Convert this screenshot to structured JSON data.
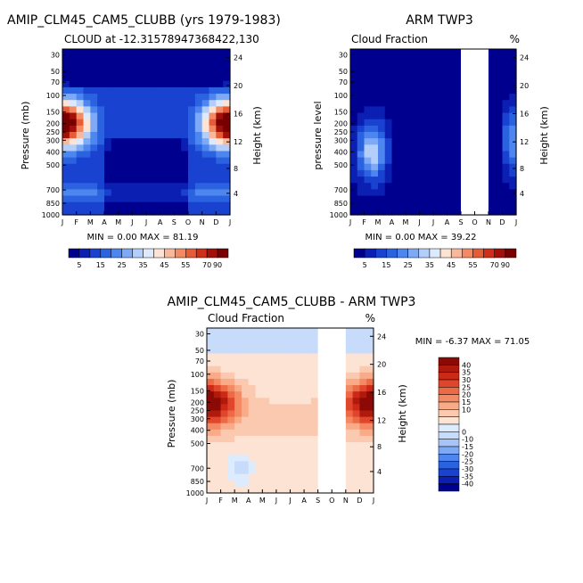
{
  "colors": {
    "cloud_scale": [
      "#00008e",
      "#0b1fb2",
      "#1842cf",
      "#2b62e0",
      "#4d86ee",
      "#7ea9f5",
      "#b4cefa",
      "#ddeafd",
      "#fde3d3",
      "#f9b89a",
      "#f48a64",
      "#e65b38",
      "#cf2e18",
      "#a3100a",
      "#780000"
    ],
    "diff_scale": [
      "#00008e",
      "#0b1fb2",
      "#1842cf",
      "#2b62e0",
      "#4d86ee",
      "#7ea9f5",
      "#a6c4f8",
      "#c7dbfb",
      "#dcebfd",
      "#fde3d3",
      "#fbc9b0",
      "#f9ab88",
      "#f48a64",
      "#ec6a45",
      "#e0462b",
      "#cc2a17",
      "#b01a0c",
      "#8c0a05"
    ]
  },
  "charts": [
    {
      "name": "model",
      "title": "AMIP_CLM45_CAM5_CLUBB (yrs 1979-1983)",
      "subtitle_left": "CLOUD at -12.31578947368422,130",
      "subtitle_right": "",
      "ylabel": "Pressure (mb)",
      "ylabel_right": "Height (km)",
      "minmax": "MIN =    0.00 MAX =   81.19",
      "axis_note": ""
    },
    {
      "name": "obs",
      "title": "ARM TWP3",
      "subtitle_left": "Cloud Fraction",
      "subtitle_right": "%",
      "ylabel": "pressure level",
      "ylabel_right": "Height (km)",
      "minmax": "MIN =    0.00 MAX =   39.22",
      "axis_note": ""
    },
    {
      "name": "diff",
      "title": "AMIP_CLM45_CAM5_CLUBB - ARM TWP3",
      "subtitle_left": "Cloud Fraction",
      "subtitle_right": "%",
      "ylabel": "Pressure (mb)",
      "ylabel_right": "Height (km)",
      "minmax": "MIN =   -6.37 MAX =   71.05",
      "axis_note": ""
    }
  ],
  "chart_data": [
    {
      "type": "heatmap",
      "title": "AMIP_CLM45_CAM5_CLUBB (yrs 1979-1983)",
      "x_ticks": [
        "J",
        "F",
        "M",
        "A",
        "M",
        "J",
        "J",
        "A",
        "S",
        "O",
        "N",
        "D",
        "J"
      ],
      "y_ticks_pressure": [
        "30",
        "50",
        "70",
        "100",
        "150",
        "200",
        "250",
        "300",
        "400",
        "500",
        "700",
        "850",
        "1000"
      ],
      "y_ticks_height": [
        "24",
        "20",
        "16",
        "12",
        "8",
        "4"
      ],
      "colorbar_labels": [
        "5",
        "15",
        "25",
        "35",
        "45",
        "55",
        "70",
        "90"
      ],
      "min": 0.0,
      "max": 81.19,
      "missing_months": []
    },
    {
      "type": "heatmap",
      "title": "ARM TWP3",
      "x_ticks": [
        "J",
        "F",
        "M",
        "A",
        "M",
        "J",
        "J",
        "A",
        "S",
        "O",
        "N",
        "D",
        "J"
      ],
      "y_ticks_pressure": [
        "30",
        "50",
        "70",
        "100",
        "150",
        "200",
        "250",
        "300",
        "400",
        "500",
        "700",
        "850",
        "1000"
      ],
      "y_ticks_height": [
        "24",
        "20",
        "16",
        "12",
        "8",
        "4"
      ],
      "colorbar_labels": [
        "5",
        "15",
        "25",
        "35",
        "45",
        "55",
        "70",
        "90"
      ],
      "min": 0.0,
      "max": 39.22,
      "missing_months": [
        "S",
        "O"
      ]
    },
    {
      "type": "heatmap",
      "title": "AMIP_CLM45_CAM5_CLUBB - ARM TWP3",
      "x_ticks": [
        "J",
        "F",
        "M",
        "A",
        "M",
        "J",
        "J",
        "A",
        "S",
        "O",
        "N",
        "D",
        "J"
      ],
      "y_ticks_pressure": [
        "30",
        "50",
        "70",
        "100",
        "150",
        "200",
        "250",
        "300",
        "400",
        "500",
        "700",
        "850",
        "1000"
      ],
      "y_ticks_height": [
        "24",
        "20",
        "16",
        "12",
        "8",
        "4"
      ],
      "colorbar_labels": [
        "40",
        "35",
        "30",
        "25",
        "20",
        "15",
        "10",
        "0",
        "-10",
        "-15",
        "-20",
        "-25",
        "-30",
        "-35",
        "-40"
      ],
      "min": -6.37,
      "max": 71.05,
      "missing_months": [
        "S",
        "O"
      ]
    }
  ]
}
